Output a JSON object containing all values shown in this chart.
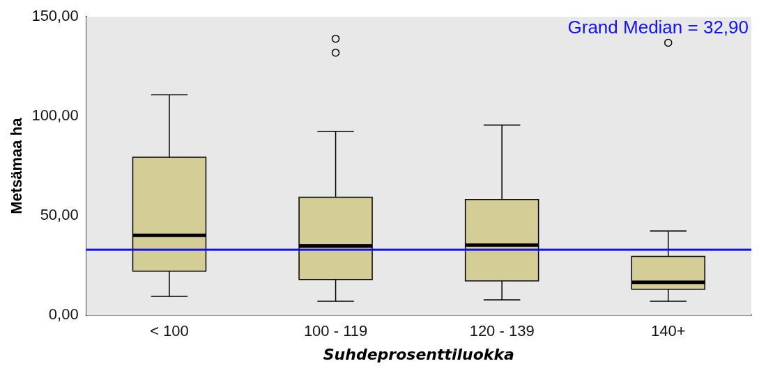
{
  "chart_data": {
    "type": "box",
    "xlabel": "Suhdeprosenttiluokka",
    "ylabel": "Metsämaa ha",
    "categories": [
      "< 100",
      "100 - 119",
      "120 - 139",
      "140+"
    ],
    "color": "#d4cd96",
    "boxes": [
      {
        "low": 9.5,
        "q1": 22.2,
        "median": 40.2,
        "q3": 79.4,
        "high": 110.8
      },
      {
        "low": 7.1,
        "q1": 18,
        "median": 34.9,
        "q3": 59.3,
        "high": 92.5,
        "outliers": [
          139,
          132
        ]
      },
      {
        "low": 7.8,
        "q1": 17.3,
        "median": 35.3,
        "q3": 58.2,
        "high": 95.6
      },
      {
        "low": 7.1,
        "q1": 13.1,
        "median": 16.6,
        "q3": 29.6,
        "high": 42.4,
        "outliers": [
          137
        ]
      }
    ],
    "ylim": [
      0,
      150
    ],
    "yticks": [
      {
        "value": 0,
        "label": "0,00"
      },
      {
        "value": 50,
        "label": "50,00"
      },
      {
        "value": 100,
        "label": "100,00"
      },
      {
        "value": 150,
        "label": "150,00"
      }
    ],
    "ref_lines": [
      {
        "axis": "y",
        "value": 32.9,
        "label": "Grand Median = 32,90",
        "color": "#1010ff"
      }
    ],
    "grid": false,
    "legend": false
  }
}
